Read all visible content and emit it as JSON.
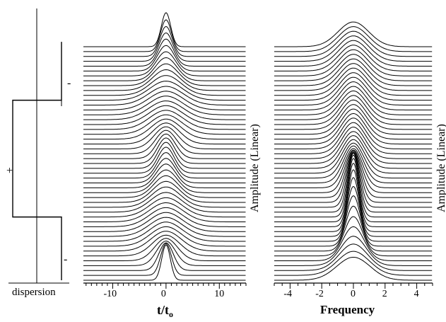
{
  "chart_data": [
    {
      "type": "line",
      "panel": "dispersion-map",
      "xlabel": "dispersion",
      "segment_signs": [
        "-",
        "+",
        "-"
      ],
      "segments": [
        {
          "sign": "-",
          "traces_from": 0,
          "traces_to": 13,
          "level": 0
        },
        {
          "sign": "+",
          "traces_from": 13,
          "traces_to": 37,
          "level": -1
        },
        {
          "sign": "-",
          "traces_from": 37,
          "traces_to": 49,
          "level": 0
        }
      ]
    },
    {
      "type": "line",
      "panel": "temporal-evolution",
      "xlabel": "t/t",
      "xlabel_sub": "o",
      "ylabel": "Amplitude (Linear)",
      "xlim": [
        -15.5,
        15
      ],
      "xticks": [
        -10,
        0,
        10
      ],
      "trace_count": 49,
      "stacked": true,
      "description_of_series": "pulse duration along propagation: narrow at start, broadens, recompresses, broadens, recompresses",
      "pulse_width_t_over_t0": [
        1.2,
        1.5,
        2.0,
        2.6,
        3.2,
        3.8,
        4.2,
        4.4,
        4.5,
        4.6,
        4.6,
        4.6,
        4.6,
        4.5,
        4.3,
        4.0,
        3.7,
        3.4,
        3.1,
        2.8,
        2.6,
        2.4,
        2.3,
        2.3,
        2.4,
        2.6,
        2.9,
        3.3,
        3.7,
        4.1,
        4.4,
        4.6,
        4.7,
        4.8,
        4.8,
        4.8,
        4.8,
        4.6,
        4.2,
        3.8,
        3.4,
        3.0,
        2.7,
        2.4,
        2.1,
        1.9,
        1.7,
        1.5,
        1.3
      ]
    },
    {
      "type": "line",
      "panel": "spectral-evolution",
      "xlabel": "Frequency",
      "ylabel": "Amplitude (Linear)",
      "xlim": [
        -5,
        5
      ],
      "xticks": [
        -4,
        -2,
        0,
        2,
        4
      ],
      "trace_count": 49,
      "stacked": true,
      "description_of_series": "spectrum narrows during propagation then broadens again",
      "spectral_width": [
        1.05,
        1.0,
        0.9,
        0.8,
        0.68,
        0.58,
        0.5,
        0.44,
        0.4,
        0.37,
        0.35,
        0.34,
        0.34,
        0.35,
        0.37,
        0.4,
        0.44,
        0.48,
        0.53,
        0.58,
        0.62,
        0.66,
        0.69,
        0.71,
        0.73,
        0.74,
        0.75,
        0.76,
        0.77,
        0.78,
        0.79,
        0.8,
        0.81,
        0.82,
        0.83,
        0.84,
        0.85,
        0.86,
        0.87,
        0.88,
        0.89,
        0.9,
        0.91,
        0.92,
        0.93,
        0.94,
        0.95,
        0.96,
        0.97
      ]
    }
  ]
}
